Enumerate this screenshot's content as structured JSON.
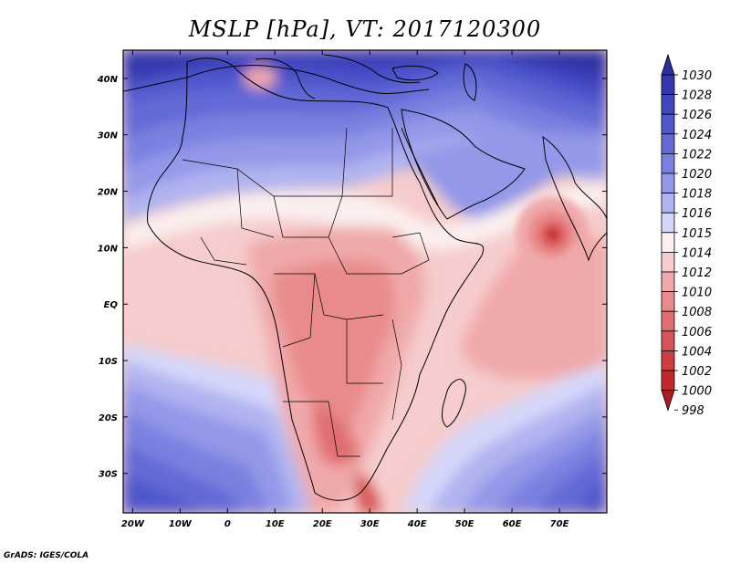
{
  "title": "MSLP [hPa], VT: 2017120300",
  "credit": "GrADS: IGES/COLA",
  "map": {
    "lon_range": [
      -22,
      80
    ],
    "lat_range": [
      -37,
      45
    ],
    "lon_ticks": [
      {
        "v": -20,
        "label": "20W"
      },
      {
        "v": -10,
        "label": "10W"
      },
      {
        "v": 0,
        "label": "0"
      },
      {
        "v": 10,
        "label": "10E"
      },
      {
        "v": 20,
        "label": "20E"
      },
      {
        "v": 30,
        "label": "30E"
      },
      {
        "v": 40,
        "label": "40E"
      },
      {
        "v": 50,
        "label": "50E"
      },
      {
        "v": 60,
        "label": "60E"
      },
      {
        "v": 70,
        "label": "70E"
      }
    ],
    "lat_ticks": [
      {
        "v": 40,
        "label": "40N"
      },
      {
        "v": 30,
        "label": "30N"
      },
      {
        "v": 20,
        "label": "20N"
      },
      {
        "v": 10,
        "label": "10N"
      },
      {
        "v": 0,
        "label": "EQ"
      },
      {
        "v": -10,
        "label": "10S"
      },
      {
        "v": -20,
        "label": "20S"
      },
      {
        "v": -30,
        "label": "30S"
      }
    ]
  },
  "colorbar": {
    "labels": [
      "1030",
      "1028",
      "1026",
      "1024",
      "1022",
      "1020",
      "1018",
      "1016",
      "1015",
      "1014",
      "1012",
      "1010",
      "1008",
      "1006",
      "1004",
      "1002",
      "1000",
      "998"
    ],
    "colors": [
      "#2a2d9e",
      "#3438b0",
      "#4045c0",
      "#5057cc",
      "#6369d6",
      "#7a80e0",
      "#9398e8",
      "#b0b4f0",
      "#d5d7fa",
      "#fbf0ef",
      "#f6cccc",
      "#f0a9aa",
      "#e98b8c",
      "#e06e70",
      "#d85456",
      "#cf3d40",
      "#c02a2d",
      "#a81b1f"
    ]
  }
}
